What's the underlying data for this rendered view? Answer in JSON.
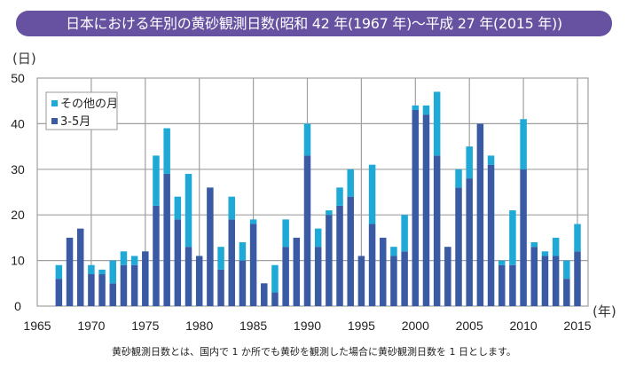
{
  "title": "日本における年別の黄砂観測日数(昭和 42 年(1967 年)～平成 27 年(2015 年))",
  "footnote": "黄砂観測日数とは、国内で 1 か所でも黄砂を観測した場合に黄砂観測日数を 1 日とします。",
  "chart_data": {
    "type": "bar",
    "stacked": true,
    "ylabel": "(日)",
    "xlabel": "(年)",
    "ylim": [
      0,
      50
    ],
    "yticks": [
      0,
      10,
      20,
      30,
      40,
      50
    ],
    "xlim": [
      1965,
      2016
    ],
    "xticks": [
      1965,
      1970,
      1975,
      1980,
      1985,
      1990,
      1995,
      2000,
      2005,
      2010,
      2015
    ],
    "grid": true,
    "legend_position": "top-left",
    "categories": [
      1967,
      1968,
      1969,
      1970,
      1971,
      1972,
      1973,
      1974,
      1975,
      1976,
      1977,
      1978,
      1979,
      1980,
      1981,
      1982,
      1983,
      1984,
      1985,
      1986,
      1987,
      1988,
      1989,
      1990,
      1991,
      1992,
      1993,
      1994,
      1995,
      1996,
      1997,
      1998,
      1999,
      2000,
      2001,
      2002,
      2003,
      2004,
      2005,
      2006,
      2007,
      2008,
      2009,
      2010,
      2011,
      2012,
      2013,
      2014,
      2015
    ],
    "series": [
      {
        "name": "3-5月",
        "color": "#3a5ba4",
        "values": [
          6,
          15,
          17,
          7,
          7,
          5,
          9,
          9,
          12,
          22,
          29,
          19,
          13,
          11,
          26,
          8,
          19,
          10,
          18,
          5,
          3,
          13,
          15,
          33,
          13,
          20,
          22,
          24,
          11,
          18,
          15,
          11,
          12,
          43,
          42,
          33,
          13,
          26,
          28,
          40,
          31,
          9,
          9,
          30,
          13,
          11,
          11,
          6,
          12
        ]
      },
      {
        "name": "その他の月",
        "color": "#1fa9d6",
        "values": [
          3,
          0,
          0,
          2,
          1,
          5,
          3,
          2,
          0,
          11,
          10,
          5,
          16,
          0,
          0,
          5,
          5,
          4,
          1,
          0,
          6,
          6,
          0,
          7,
          4,
          1,
          4,
          6,
          0,
          13,
          0,
          2,
          8,
          1,
          2,
          14,
          0,
          4,
          7,
          0,
          2,
          1,
          12,
          11,
          1,
          1,
          4,
          4,
          6
        ]
      }
    ]
  }
}
